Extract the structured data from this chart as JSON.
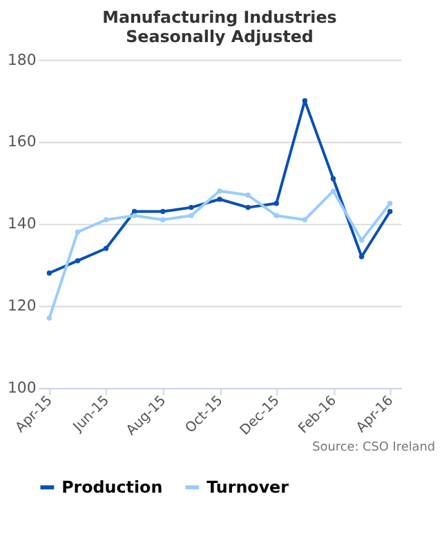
{
  "chart_data": {
    "type": "line",
    "title": "Manufacturing Industries Seasonally Adjusted",
    "categories": [
      "Apr-15",
      null,
      "Jun-15",
      null,
      "Aug-15",
      null,
      "Oct-15",
      null,
      "Dec-15",
      null,
      "Feb-16",
      null,
      "Apr-16"
    ],
    "series": [
      {
        "name": "Production",
        "color": "#0a50b4",
        "values": [
          128,
          131,
          134,
          143,
          143,
          144,
          146,
          144,
          145,
          170,
          151,
          132,
          143
        ]
      },
      {
        "name": "Turnover",
        "color": "#99ccff",
        "values": [
          117,
          138,
          141,
          142,
          141,
          142,
          148,
          147,
          142,
          141,
          148,
          136,
          145
        ]
      }
    ],
    "ylim": [
      100,
      180
    ],
    "yticks": [
      100,
      120,
      140,
      160,
      180
    ],
    "grid": "y",
    "legend": "bottom",
    "marker": "circle",
    "line_style": "solid",
    "annotations": [
      "Source: CSO Ireland"
    ]
  }
}
